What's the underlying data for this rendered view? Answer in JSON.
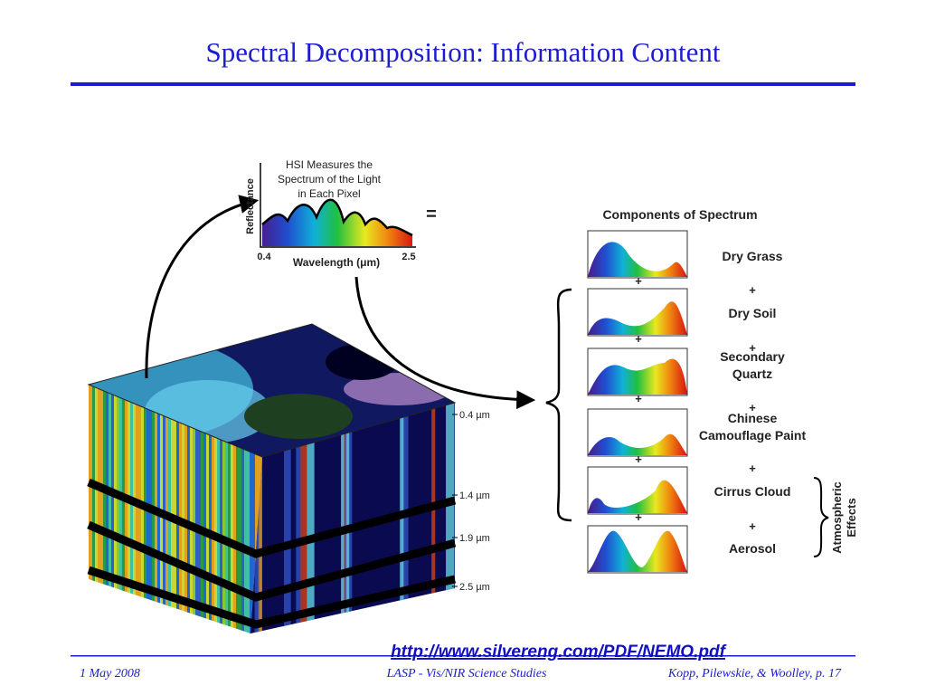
{
  "header": {
    "title": "Spectral Decomposition: Information Content"
  },
  "figure": {
    "spectrum": {
      "caption": [
        "HSI Measures the",
        "Spectrum of the Light",
        "in Each Pixel"
      ],
      "y_label": "Reflectance",
      "x_min": "0.4",
      "x_max": "2.5",
      "x_label": "Wavelength (μm)",
      "equals": "="
    },
    "components_title": "Components of Spectrum",
    "plus": "+",
    "components": [
      {
        "label": [
          "Dry Grass"
        ]
      },
      {
        "label": [
          "Dry Soil"
        ]
      },
      {
        "label": [
          "Secondary",
          "Quartz"
        ]
      },
      {
        "label": [
          "Chinese",
          "Camouflage Paint"
        ]
      },
      {
        "label": [
          "Cirrus Cloud"
        ]
      },
      {
        "label": [
          "Aerosol"
        ]
      }
    ],
    "atmospheric": [
      "Atmospheric",
      "Effects"
    ],
    "bands": [
      "0.4 µm",
      "1.4 µm",
      "1.9 µm",
      "2.5 µm"
    ]
  },
  "source_url": "http://www.silvereng.com/PDF/NEMO.pdf",
  "footer": {
    "date": "1 May 2008",
    "center": "LASP - Vis/NIR Science Studies",
    "right": "Kopp, Pilewskie, & Woolley, p. 17"
  }
}
